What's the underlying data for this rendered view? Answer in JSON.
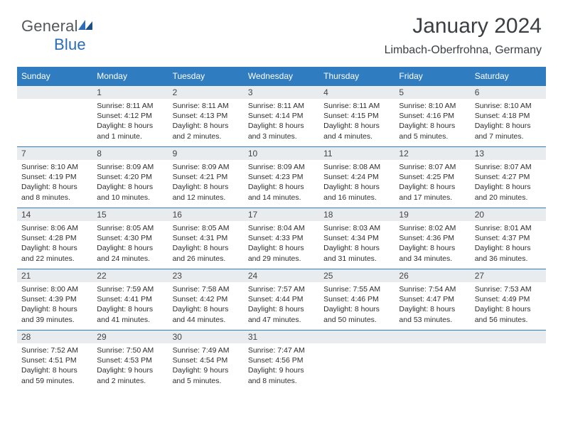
{
  "logo": {
    "word1": "General",
    "word2": "Blue"
  },
  "title": "January 2024",
  "location": "Limbach-Oberfrohna, Germany",
  "weekdays": [
    "Sunday",
    "Monday",
    "Tuesday",
    "Wednesday",
    "Thursday",
    "Friday",
    "Saturday"
  ],
  "colors": {
    "header": "#2f7cc0",
    "band": "#e9ecef",
    "text": "#2e2e2e"
  },
  "weeks": [
    [
      {
        "n": "",
        "sr": "",
        "ss": "",
        "dl": ""
      },
      {
        "n": "1",
        "sr": "Sunrise: 8:11 AM",
        "ss": "Sunset: 4:12 PM",
        "dl": "Daylight: 8 hours and 1 minute."
      },
      {
        "n": "2",
        "sr": "Sunrise: 8:11 AM",
        "ss": "Sunset: 4:13 PM",
        "dl": "Daylight: 8 hours and 2 minutes."
      },
      {
        "n": "3",
        "sr": "Sunrise: 8:11 AM",
        "ss": "Sunset: 4:14 PM",
        "dl": "Daylight: 8 hours and 3 minutes."
      },
      {
        "n": "4",
        "sr": "Sunrise: 8:11 AM",
        "ss": "Sunset: 4:15 PM",
        "dl": "Daylight: 8 hours and 4 minutes."
      },
      {
        "n": "5",
        "sr": "Sunrise: 8:10 AM",
        "ss": "Sunset: 4:16 PM",
        "dl": "Daylight: 8 hours and 5 minutes."
      },
      {
        "n": "6",
        "sr": "Sunrise: 8:10 AM",
        "ss": "Sunset: 4:18 PM",
        "dl": "Daylight: 8 hours and 7 minutes."
      }
    ],
    [
      {
        "n": "7",
        "sr": "Sunrise: 8:10 AM",
        "ss": "Sunset: 4:19 PM",
        "dl": "Daylight: 8 hours and 8 minutes."
      },
      {
        "n": "8",
        "sr": "Sunrise: 8:09 AM",
        "ss": "Sunset: 4:20 PM",
        "dl": "Daylight: 8 hours and 10 minutes."
      },
      {
        "n": "9",
        "sr": "Sunrise: 8:09 AM",
        "ss": "Sunset: 4:21 PM",
        "dl": "Daylight: 8 hours and 12 minutes."
      },
      {
        "n": "10",
        "sr": "Sunrise: 8:09 AM",
        "ss": "Sunset: 4:23 PM",
        "dl": "Daylight: 8 hours and 14 minutes."
      },
      {
        "n": "11",
        "sr": "Sunrise: 8:08 AM",
        "ss": "Sunset: 4:24 PM",
        "dl": "Daylight: 8 hours and 16 minutes."
      },
      {
        "n": "12",
        "sr": "Sunrise: 8:07 AM",
        "ss": "Sunset: 4:25 PM",
        "dl": "Daylight: 8 hours and 17 minutes."
      },
      {
        "n": "13",
        "sr": "Sunrise: 8:07 AM",
        "ss": "Sunset: 4:27 PM",
        "dl": "Daylight: 8 hours and 20 minutes."
      }
    ],
    [
      {
        "n": "14",
        "sr": "Sunrise: 8:06 AM",
        "ss": "Sunset: 4:28 PM",
        "dl": "Daylight: 8 hours and 22 minutes."
      },
      {
        "n": "15",
        "sr": "Sunrise: 8:05 AM",
        "ss": "Sunset: 4:30 PM",
        "dl": "Daylight: 8 hours and 24 minutes."
      },
      {
        "n": "16",
        "sr": "Sunrise: 8:05 AM",
        "ss": "Sunset: 4:31 PM",
        "dl": "Daylight: 8 hours and 26 minutes."
      },
      {
        "n": "17",
        "sr": "Sunrise: 8:04 AM",
        "ss": "Sunset: 4:33 PM",
        "dl": "Daylight: 8 hours and 29 minutes."
      },
      {
        "n": "18",
        "sr": "Sunrise: 8:03 AM",
        "ss": "Sunset: 4:34 PM",
        "dl": "Daylight: 8 hours and 31 minutes."
      },
      {
        "n": "19",
        "sr": "Sunrise: 8:02 AM",
        "ss": "Sunset: 4:36 PM",
        "dl": "Daylight: 8 hours and 34 minutes."
      },
      {
        "n": "20",
        "sr": "Sunrise: 8:01 AM",
        "ss": "Sunset: 4:37 PM",
        "dl": "Daylight: 8 hours and 36 minutes."
      }
    ],
    [
      {
        "n": "21",
        "sr": "Sunrise: 8:00 AM",
        "ss": "Sunset: 4:39 PM",
        "dl": "Daylight: 8 hours and 39 minutes."
      },
      {
        "n": "22",
        "sr": "Sunrise: 7:59 AM",
        "ss": "Sunset: 4:41 PM",
        "dl": "Daylight: 8 hours and 41 minutes."
      },
      {
        "n": "23",
        "sr": "Sunrise: 7:58 AM",
        "ss": "Sunset: 4:42 PM",
        "dl": "Daylight: 8 hours and 44 minutes."
      },
      {
        "n": "24",
        "sr": "Sunrise: 7:57 AM",
        "ss": "Sunset: 4:44 PM",
        "dl": "Daylight: 8 hours and 47 minutes."
      },
      {
        "n": "25",
        "sr": "Sunrise: 7:55 AM",
        "ss": "Sunset: 4:46 PM",
        "dl": "Daylight: 8 hours and 50 minutes."
      },
      {
        "n": "26",
        "sr": "Sunrise: 7:54 AM",
        "ss": "Sunset: 4:47 PM",
        "dl": "Daylight: 8 hours and 53 minutes."
      },
      {
        "n": "27",
        "sr": "Sunrise: 7:53 AM",
        "ss": "Sunset: 4:49 PM",
        "dl": "Daylight: 8 hours and 56 minutes."
      }
    ],
    [
      {
        "n": "28",
        "sr": "Sunrise: 7:52 AM",
        "ss": "Sunset: 4:51 PM",
        "dl": "Daylight: 8 hours and 59 minutes."
      },
      {
        "n": "29",
        "sr": "Sunrise: 7:50 AM",
        "ss": "Sunset: 4:53 PM",
        "dl": "Daylight: 9 hours and 2 minutes."
      },
      {
        "n": "30",
        "sr": "Sunrise: 7:49 AM",
        "ss": "Sunset: 4:54 PM",
        "dl": "Daylight: 9 hours and 5 minutes."
      },
      {
        "n": "31",
        "sr": "Sunrise: 7:47 AM",
        "ss": "Sunset: 4:56 PM",
        "dl": "Daylight: 9 hours and 8 minutes."
      },
      {
        "n": "",
        "sr": "",
        "ss": "",
        "dl": ""
      },
      {
        "n": "",
        "sr": "",
        "ss": "",
        "dl": ""
      },
      {
        "n": "",
        "sr": "",
        "ss": "",
        "dl": ""
      }
    ]
  ]
}
